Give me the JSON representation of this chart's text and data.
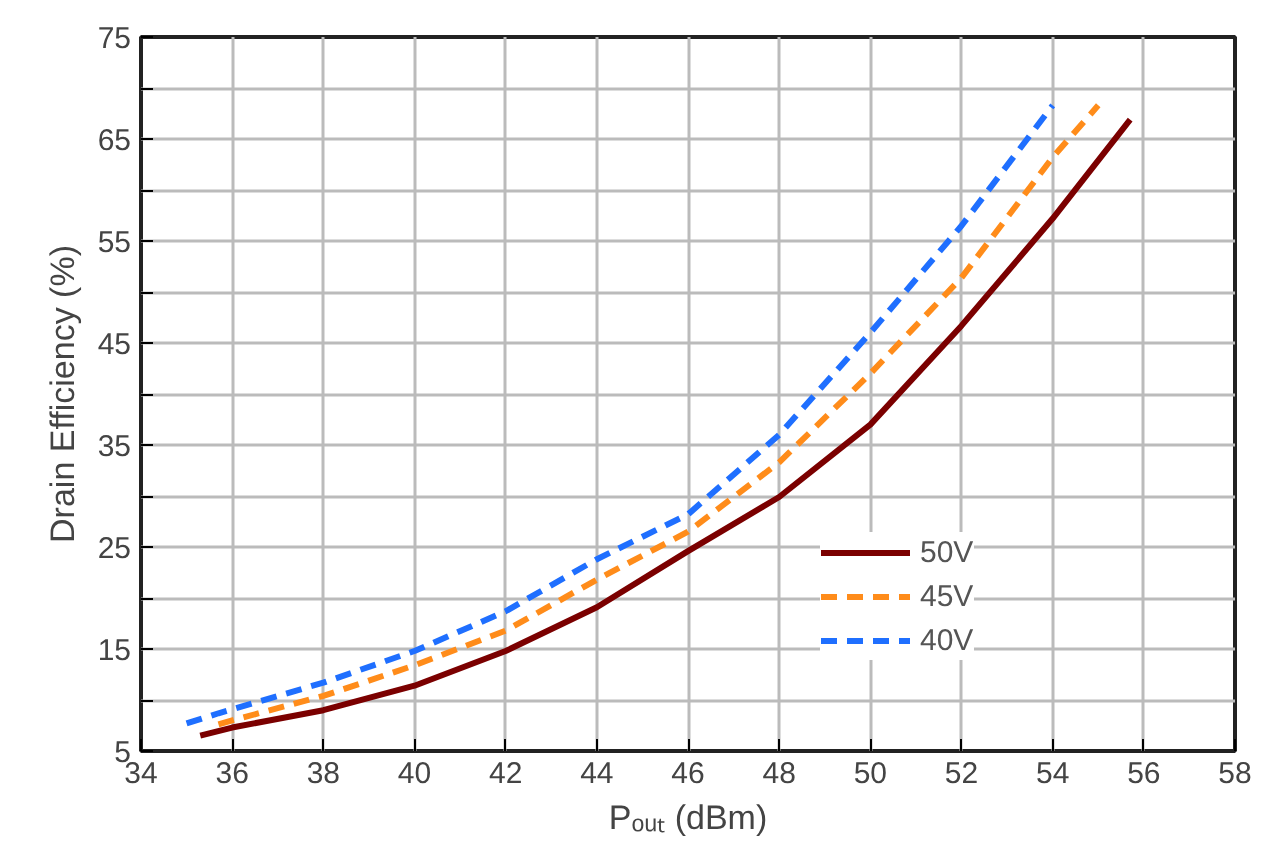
{
  "chart_data": {
    "type": "line",
    "xlabel": "Pₒᵤₜ (dBm)",
    "ylabel": "Drain Efficiency (%)",
    "xlim": [
      34,
      58
    ],
    "ylim": [
      5,
      75
    ],
    "xticks": [
      34,
      36,
      38,
      40,
      42,
      44,
      46,
      48,
      50,
      52,
      54,
      56,
      58
    ],
    "yticks": [
      5,
      {
        "value": 10,
        "label": null
      },
      15,
      {
        "value": 20,
        "label": null
      },
      25,
      {
        "value": 30,
        "label": null
      },
      35,
      {
        "value": 40,
        "label": null
      },
      45,
      {
        "value": 50,
        "label": null
      },
      55,
      {
        "value": 60,
        "label": null
      },
      65,
      {
        "value": 70,
        "label": null
      },
      75
    ],
    "grid": true,
    "legend": "bottom right",
    "marker": "none",
    "series": [
      {
        "name": "50V",
        "color": "#7b0000",
        "line_style": "solid",
        "x": [
          35.3,
          36,
          38,
          40,
          42,
          44,
          46,
          48,
          50,
          52,
          54,
          55.7
        ],
        "values": [
          6.5,
          7.3,
          9.0,
          11.4,
          14.8,
          19.1,
          24.6,
          29.9,
          37.0,
          46.7,
          57.2,
          66.9
        ]
      },
      {
        "name": "45V",
        "color": "#ff8c1a",
        "line_style": "dashed",
        "x": [
          35.7,
          36,
          38,
          40,
          42,
          44,
          46,
          48,
          50,
          52,
          54,
          55.0
        ],
        "values": [
          7.6,
          8.0,
          10.4,
          13.4,
          16.8,
          21.8,
          26.5,
          33.3,
          42.0,
          51.4,
          63.2,
          68.3
        ]
      },
      {
        "name": "40V",
        "color": "#1f6fff",
        "line_style": "dashed",
        "x": [
          35.0,
          35.7,
          38,
          40,
          42,
          44,
          46,
          48,
          50,
          52,
          54.0
        ],
        "values": [
          7.7,
          8.7,
          11.7,
          14.8,
          18.7,
          23.8,
          28.2,
          36.0,
          46.0,
          56.5,
          68.3
        ]
      }
    ]
  }
}
